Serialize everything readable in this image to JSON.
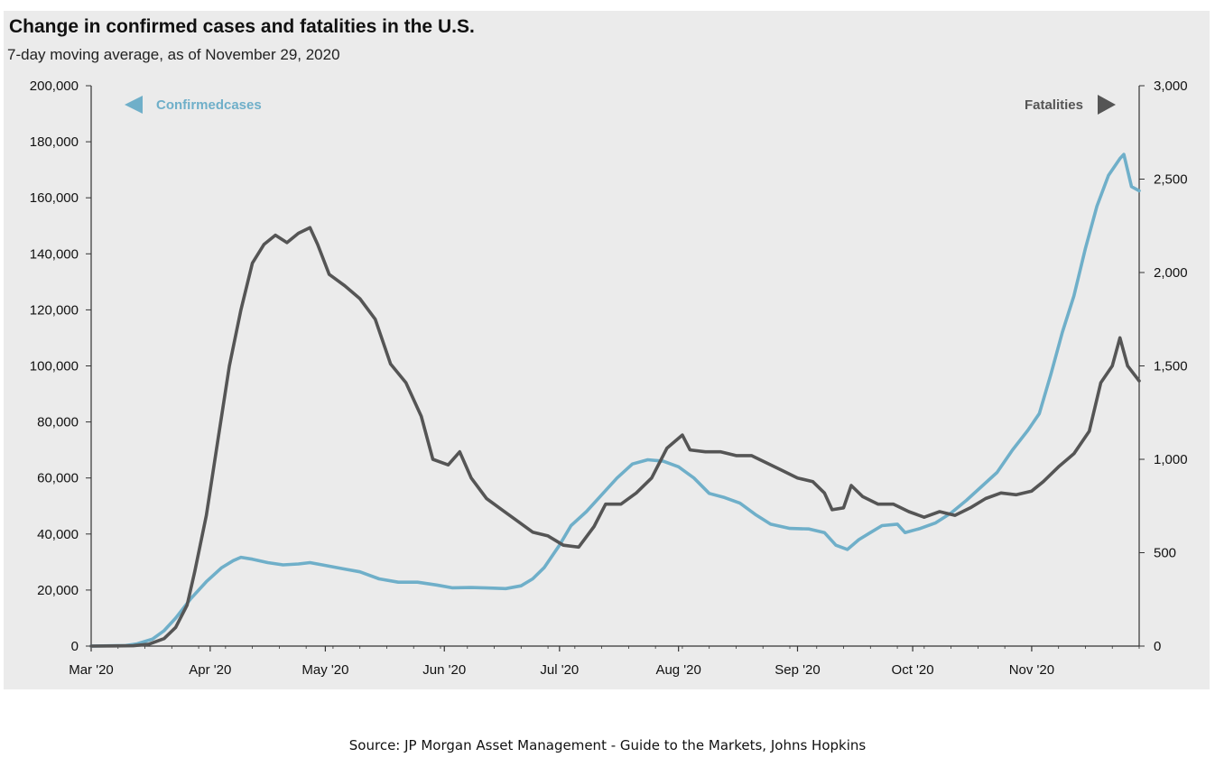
{
  "source": "Source:  JP Morgan Asset Management - Guide to the Markets, Johns Hopkins",
  "colors": {
    "cases": "#6fafc9",
    "fatalities": "#555555",
    "panel": "#ebebeb",
    "axis": "#333333"
  },
  "chart_data": {
    "type": "line",
    "title": "Change in confirmed cases and fatalities in the U.S.",
    "subtitle": "7-day moving average, as of November 29, 2020",
    "x_ticks": [
      "Mar '20",
      "Apr '20",
      "May '20",
      "Jun '20",
      "Jul '20",
      "Aug '20",
      "Sep '20",
      "Oct '20",
      "Nov '20"
    ],
    "y_left": {
      "min": 0,
      "max": 200000,
      "ticks": [
        "0",
        "20,000",
        "40,000",
        "60,000",
        "80,000",
        "100,000",
        "120,000",
        "140,000",
        "160,000",
        "180,000",
        "200,000"
      ]
    },
    "y_right": {
      "min": 0,
      "max": 3000,
      "ticks": [
        "0",
        "500",
        "1,000",
        "1,500",
        "2,000",
        "2,500",
        "3,000"
      ]
    },
    "grid": false,
    "series": [
      {
        "name": "Confirmed cases",
        "axis": "left",
        "points": [
          [
            "2020-03-01",
            0
          ],
          [
            "2020-03-10",
            200
          ],
          [
            "2020-03-13",
            800
          ],
          [
            "2020-03-17",
            2500
          ],
          [
            "2020-03-20",
            5500
          ],
          [
            "2020-03-23",
            10000
          ],
          [
            "2020-03-27",
            17000
          ],
          [
            "2020-03-31",
            23000
          ],
          [
            "2020-04-04",
            28000
          ],
          [
            "2020-04-07",
            30500
          ],
          [
            "2020-04-09",
            31700
          ],
          [
            "2020-04-12",
            31000
          ],
          [
            "2020-04-16",
            29800
          ],
          [
            "2020-04-20",
            29000
          ],
          [
            "2020-04-24",
            29300
          ],
          [
            "2020-04-27",
            29800
          ],
          [
            "2020-05-01",
            28800
          ],
          [
            "2020-05-06",
            27500
          ],
          [
            "2020-05-10",
            26500
          ],
          [
            "2020-05-15",
            24000
          ],
          [
            "2020-05-20",
            22800
          ],
          [
            "2020-05-25",
            22800
          ],
          [
            "2020-05-30",
            21800
          ],
          [
            "2020-06-03",
            20800
          ],
          [
            "2020-06-08",
            20900
          ],
          [
            "2020-06-13",
            20700
          ],
          [
            "2020-06-17",
            20500
          ],
          [
            "2020-06-21",
            21500
          ],
          [
            "2020-06-24",
            24000
          ],
          [
            "2020-06-27",
            28000
          ],
          [
            "2020-07-01",
            36000
          ],
          [
            "2020-07-04",
            43000
          ],
          [
            "2020-07-08",
            48000
          ],
          [
            "2020-07-12",
            54000
          ],
          [
            "2020-07-16",
            60000
          ],
          [
            "2020-07-20",
            65000
          ],
          [
            "2020-07-24",
            66500
          ],
          [
            "2020-07-28",
            66000
          ],
          [
            "2020-08-01",
            64000
          ],
          [
            "2020-08-05",
            60000
          ],
          [
            "2020-08-09",
            54500
          ],
          [
            "2020-08-13",
            53000
          ],
          [
            "2020-08-17",
            51000
          ],
          [
            "2020-08-21",
            47000
          ],
          [
            "2020-08-25",
            43500
          ],
          [
            "2020-08-30",
            42000
          ],
          [
            "2020-09-04",
            41800
          ],
          [
            "2020-09-08",
            40500
          ],
          [
            "2020-09-11",
            36000
          ],
          [
            "2020-09-14",
            34500
          ],
          [
            "2020-09-17",
            38000
          ],
          [
            "2020-09-20",
            40500
          ],
          [
            "2020-09-23",
            43000
          ],
          [
            "2020-09-27",
            43500
          ],
          [
            "2020-09-29",
            40500
          ],
          [
            "2020-10-03",
            42000
          ],
          [
            "2020-10-07",
            44000
          ],
          [
            "2020-10-11",
            47500
          ],
          [
            "2020-10-15",
            52000
          ],
          [
            "2020-10-19",
            57000
          ],
          [
            "2020-10-23",
            62000
          ],
          [
            "2020-10-27",
            70000
          ],
          [
            "2020-10-31",
            77000
          ],
          [
            "2020-11-03",
            83000
          ],
          [
            "2020-11-06",
            97000
          ],
          [
            "2020-11-09",
            112000
          ],
          [
            "2020-11-12",
            125000
          ],
          [
            "2020-11-15",
            142000
          ],
          [
            "2020-11-18",
            157000
          ],
          [
            "2020-11-21",
            168000
          ],
          [
            "2020-11-24",
            174000
          ],
          [
            "2020-11-25",
            175500
          ],
          [
            "2020-11-27",
            164000
          ],
          [
            "2020-11-29",
            162500
          ]
        ]
      },
      {
        "name": "Fatalities",
        "axis": "right",
        "points": [
          [
            "2020-03-01",
            0
          ],
          [
            "2020-03-12",
            2
          ],
          [
            "2020-03-16",
            10
          ],
          [
            "2020-03-20",
            40
          ],
          [
            "2020-03-23",
            100
          ],
          [
            "2020-03-26",
            220
          ],
          [
            "2020-03-28",
            400
          ],
          [
            "2020-03-31",
            700
          ],
          [
            "2020-04-03",
            1100
          ],
          [
            "2020-04-06",
            1500
          ],
          [
            "2020-04-09",
            1800
          ],
          [
            "2020-04-12",
            2050
          ],
          [
            "2020-04-15",
            2150
          ],
          [
            "2020-04-18",
            2200
          ],
          [
            "2020-04-21",
            2160
          ],
          [
            "2020-04-24",
            2210
          ],
          [
            "2020-04-27",
            2240
          ],
          [
            "2020-04-29",
            2150
          ],
          [
            "2020-05-02",
            1990
          ],
          [
            "2020-05-06",
            1930
          ],
          [
            "2020-05-10",
            1860
          ],
          [
            "2020-05-14",
            1750
          ],
          [
            "2020-05-18",
            1510
          ],
          [
            "2020-05-22",
            1410
          ],
          [
            "2020-05-26",
            1230
          ],
          [
            "2020-05-29",
            1000
          ],
          [
            "2020-06-02",
            970
          ],
          [
            "2020-06-05",
            1040
          ],
          [
            "2020-06-08",
            900
          ],
          [
            "2020-06-12",
            790
          ],
          [
            "2020-06-16",
            730
          ],
          [
            "2020-06-20",
            670
          ],
          [
            "2020-06-24",
            610
          ],
          [
            "2020-06-28",
            590
          ],
          [
            "2020-07-02",
            540
          ],
          [
            "2020-07-06",
            530
          ],
          [
            "2020-07-10",
            640
          ],
          [
            "2020-07-13",
            760
          ],
          [
            "2020-07-17",
            760
          ],
          [
            "2020-07-21",
            820
          ],
          [
            "2020-07-25",
            900
          ],
          [
            "2020-07-29",
            1060
          ],
          [
            "2020-08-02",
            1130
          ],
          [
            "2020-08-04",
            1050
          ],
          [
            "2020-08-08",
            1040
          ],
          [
            "2020-08-12",
            1040
          ],
          [
            "2020-08-16",
            1020
          ],
          [
            "2020-08-20",
            1020
          ],
          [
            "2020-08-24",
            980
          ],
          [
            "2020-08-28",
            940
          ],
          [
            "2020-09-01",
            900
          ],
          [
            "2020-09-05",
            880
          ],
          [
            "2020-09-08",
            820
          ],
          [
            "2020-09-10",
            730
          ],
          [
            "2020-09-13",
            740
          ],
          [
            "2020-09-15",
            860
          ],
          [
            "2020-09-18",
            800
          ],
          [
            "2020-09-22",
            760
          ],
          [
            "2020-09-26",
            760
          ],
          [
            "2020-09-30",
            720
          ],
          [
            "2020-10-04",
            690
          ],
          [
            "2020-10-08",
            720
          ],
          [
            "2020-10-12",
            700
          ],
          [
            "2020-10-16",
            740
          ],
          [
            "2020-10-20",
            790
          ],
          [
            "2020-10-24",
            820
          ],
          [
            "2020-10-28",
            810
          ],
          [
            "2020-11-01",
            830
          ],
          [
            "2020-11-04",
            880
          ],
          [
            "2020-11-08",
            960
          ],
          [
            "2020-11-12",
            1030
          ],
          [
            "2020-11-16",
            1150
          ],
          [
            "2020-11-19",
            1410
          ],
          [
            "2020-11-22",
            1500
          ],
          [
            "2020-11-24",
            1650
          ],
          [
            "2020-11-26",
            1500
          ],
          [
            "2020-11-29",
            1420
          ]
        ]
      }
    ],
    "annotations": [
      {
        "text": "Confirmedcases",
        "arrow": "left",
        "axis": "left",
        "position": "top-left"
      },
      {
        "text": "Fatalities",
        "arrow": "right",
        "axis": "right",
        "position": "top-right"
      }
    ]
  }
}
